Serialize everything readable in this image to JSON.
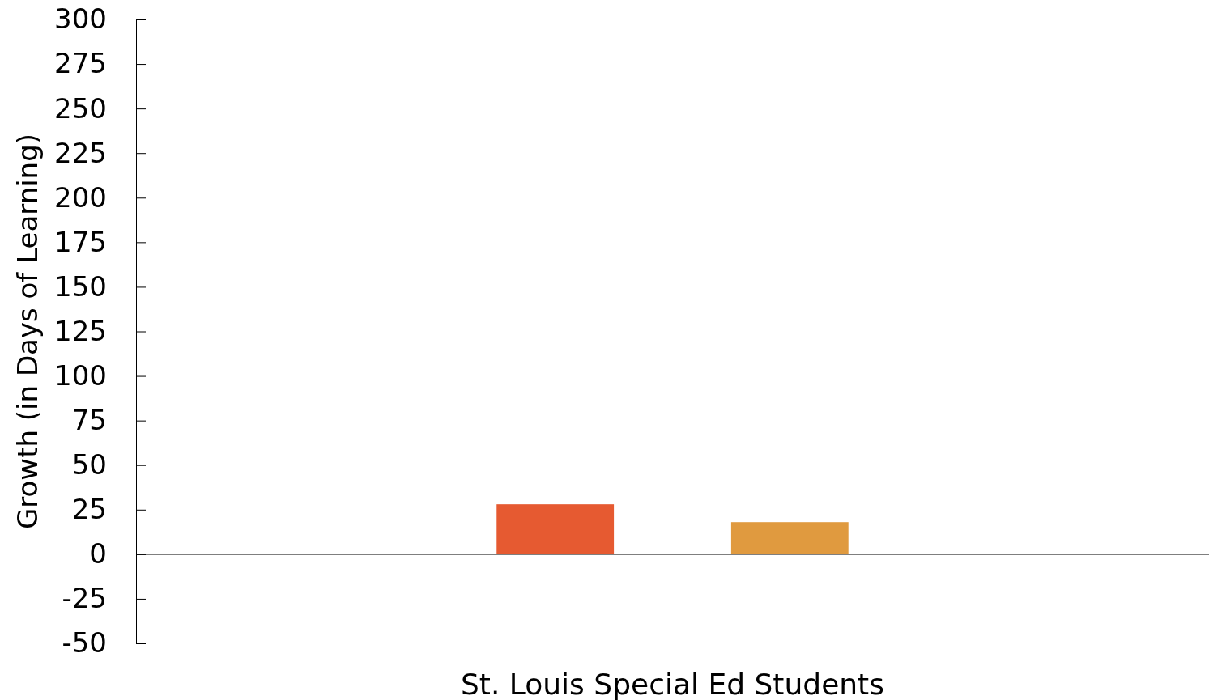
{
  "chart_data": {
    "type": "bar",
    "ylabel": "Growth (in Days of Learning)",
    "categories": [
      "St. Louis Special Ed Students"
    ],
    "series": [
      {
        "color": "#e65a31",
        "values": [
          28
        ]
      },
      {
        "color": "#e09a3f",
        "values": [
          18
        ]
      }
    ],
    "ylim": [
      -50,
      300
    ],
    "yticks": [
      -50,
      -25,
      0,
      25,
      50,
      75,
      100,
      125,
      150,
      175,
      200,
      225,
      250,
      275,
      300
    ]
  }
}
